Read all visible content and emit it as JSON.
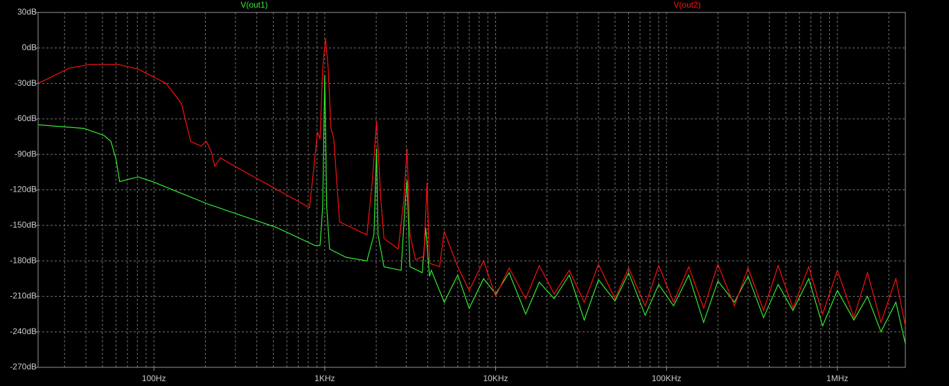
{
  "chart_data": {
    "type": "line",
    "xscale": "log",
    "grid": true,
    "background": "#000000",
    "xlim": [
      21,
      2500000
    ],
    "ylim": [
      -270,
      30
    ],
    "xticks": [
      {
        "value": 100,
        "label": "100Hz"
      },
      {
        "value": 1000,
        "label": "1KHz"
      },
      {
        "value": 10000,
        "label": "10KHz"
      },
      {
        "value": 100000,
        "label": "100KHz"
      },
      {
        "value": 1000000,
        "label": "1MHz"
      }
    ],
    "xminorticks": [
      30,
      40,
      50,
      60,
      70,
      80,
      90,
      200,
      300,
      400,
      500,
      600,
      700,
      800,
      900,
      2000,
      3000,
      4000,
      5000,
      6000,
      7000,
      8000,
      9000,
      20000,
      30000,
      40000,
      50000,
      60000,
      70000,
      80000,
      90000,
      200000,
      300000,
      400000,
      500000,
      600000,
      700000,
      800000,
      900000,
      2000000
    ],
    "yticks": [
      {
        "value": 30,
        "label": "30dB"
      },
      {
        "value": 0,
        "label": "0dB"
      },
      {
        "value": -30,
        "label": "-30dB"
      },
      {
        "value": -60,
        "label": "-60dB"
      },
      {
        "value": -90,
        "label": "-90dB"
      },
      {
        "value": -120,
        "label": "-120dB"
      },
      {
        "value": -150,
        "label": "-150dB"
      },
      {
        "value": -180,
        "label": "-180dB"
      },
      {
        "value": -210,
        "label": "-210dB"
      },
      {
        "value": -240,
        "label": "-240dB"
      },
      {
        "value": -270,
        "label": "-270dB"
      }
    ],
    "series": [
      {
        "name": "V(out1)",
        "color": "#33ee33",
        "x": [
          21,
          39,
          51,
          56,
          60,
          63,
          81,
          98,
          207,
          526,
          877,
          938,
          972,
          1000,
          1027,
          1067,
          1334,
          1765,
          1939,
          2010,
          2050,
          2220,
          2800,
          2940,
          3030,
          3150,
          3720,
          3900,
          4100,
          4200,
          5000,
          6000,
          7000,
          8500,
          10000,
          12000,
          15000,
          18000,
          22000,
          27000,
          33000,
          40000,
          50000,
          60000,
          75000,
          90000,
          110000,
          135000,
          165000,
          200000,
          250000,
          300000,
          370000,
          450000,
          550000,
          680000,
          820000,
          1000000,
          1250000,
          1500000,
          1800000,
          2200000,
          2500000
        ],
        "values": [
          -65,
          -68,
          -74,
          -79,
          -94,
          -113,
          -109,
          -113,
          -132,
          -152,
          -167,
          -167,
          -135,
          -23,
          -135,
          -170,
          -177,
          -180,
          -158,
          -85,
          -158,
          -185,
          -188,
          -135,
          -112,
          -185,
          -190,
          -152,
          -193,
          -188,
          -215,
          -192,
          -220,
          -195,
          -208,
          -190,
          -225,
          -198,
          -212,
          -192,
          -230,
          -196,
          -214,
          -190,
          -226,
          -200,
          -218,
          -192,
          -232,
          -197,
          -215,
          -193,
          -228,
          -200,
          -222,
          -195,
          -235,
          -205,
          -230,
          -210,
          -240,
          -215,
          -250
        ]
      },
      {
        "name": "V(out2)",
        "color": "#ff1010",
        "x": [
          21,
          32,
          42,
          62,
          81,
          118,
          145,
          164,
          189,
          203,
          217,
          227,
          245,
          273,
          814,
          856,
          906,
          938,
          972,
          1010,
          1048,
          1087,
          1130,
          1220,
          1765,
          1900,
          2010,
          2130,
          2220,
          2690,
          2900,
          3030,
          3150,
          3400,
          3800,
          3970,
          4100,
          4700,
          5000,
          6000,
          7000,
          8500,
          10000,
          12000,
          15000,
          18000,
          22000,
          27000,
          33000,
          40000,
          50000,
          60000,
          75000,
          90000,
          110000,
          135000,
          165000,
          200000,
          250000,
          300000,
          370000,
          450000,
          550000,
          680000,
          820000,
          1000000,
          1250000,
          1500000,
          1800000,
          2200000,
          2500000
        ],
        "values": [
          -30,
          -17,
          -14,
          -14,
          -18,
          -30,
          -47,
          -79,
          -83,
          -79,
          -88,
          -100,
          -93,
          -97,
          -135,
          -106,
          -71,
          -77,
          -18,
          8,
          -18,
          -68,
          -77,
          -147,
          -158,
          -112,
          -62,
          -129,
          -161,
          -170,
          -129,
          -85,
          -158,
          -179,
          -176,
          -114,
          -182,
          -185,
          -155,
          -185,
          -205,
          -180,
          -210,
          -186,
          -212,
          -184,
          -208,
          -188,
          -215,
          -183,
          -212,
          -186,
          -218,
          -184,
          -215,
          -185,
          -220,
          -183,
          -218,
          -186,
          -222,
          -184,
          -220,
          -185,
          -225,
          -188,
          -228,
          -190,
          -232,
          -195,
          -235
        ]
      }
    ]
  }
}
